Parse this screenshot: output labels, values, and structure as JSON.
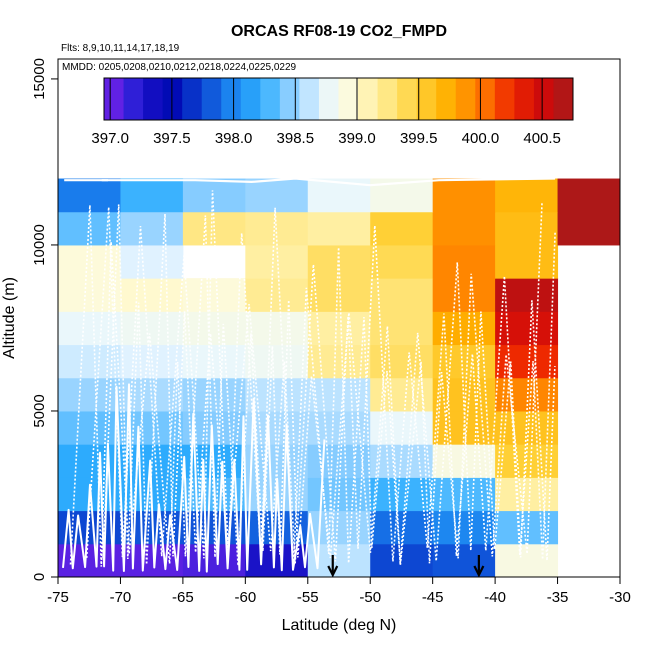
{
  "chart_data": {
    "type": "heatmap",
    "title": "ORCAS RF08-19 CO2_FMPD",
    "flights_note": "Flts: 8,9,10,11,14,17,18,19",
    "dates_note": "MMDD: 0205,0208,0210,0212,0218,0224,0225,0229",
    "xlabel": "Latitude (deg N)",
    "ylabel": "Altitude (m)",
    "xlim": [
      -75,
      -30
    ],
    "ylim": [
      0,
      15000
    ],
    "x_ticks": [
      "-75",
      "-70",
      "-65",
      "-60",
      "-55",
      "-50",
      "-45",
      "-40",
      "-35",
      "-30"
    ],
    "x_tick_values": [
      -75,
      -70,
      -65,
      -60,
      -55,
      -50,
      -45,
      -40,
      -35,
      -30
    ],
    "y_ticks": [
      "0",
      "5000",
      "10000",
      "15000"
    ],
    "y_tick_values": [
      0,
      5000,
      10000,
      15000
    ],
    "colorbar": {
      "min": 396.95,
      "max": 400.75,
      "tick_labels": [
        "397.0",
        "397.5",
        "398.0",
        "398.5",
        "399.0",
        "399.5",
        "400.0",
        "400.5"
      ],
      "tick_values": [
        397.0,
        397.5,
        398.0,
        398.5,
        399.0,
        399.5,
        400.0,
        400.5
      ],
      "colors": [
        "#7a22ea",
        "#2a1fd6",
        "#0000b0",
        "#0a3ccd",
        "#1a80ee",
        "#2eaefe",
        "#8ecfff",
        "#e8f6ff",
        "#fffbd6",
        "#ffe98a",
        "#ffd23a",
        "#ffb000",
        "#ff7e00",
        "#ef2a00",
        "#d00a0a",
        "#a41b1b"
      ]
    },
    "lat_bins": [
      -75,
      -70,
      -65,
      -60,
      -55,
      -50,
      -45,
      -40,
      -35,
      -30
    ],
    "alt_bins": [
      0,
      1000,
      2000,
      3000,
      4000,
      5000,
      6000,
      7000,
      8000,
      9000,
      10000,
      11000,
      12000
    ],
    "values": [
      [
        397.05,
        397.05,
        397.1,
        397.3,
        398.6,
        397.75,
        397.8,
        398.9,
        null
      ],
      [
        397.75,
        397.8,
        397.8,
        397.85,
        398.5,
        397.9,
        398.0,
        398.35,
        null
      ],
      [
        398.2,
        398.2,
        398.3,
        398.5,
        398.4,
        398.25,
        398.3,
        399.15,
        null
      ],
      [
        398.2,
        398.2,
        398.2,
        398.5,
        398.45,
        398.55,
        398.9,
        399.5,
        null
      ],
      [
        398.35,
        398.4,
        398.45,
        398.55,
        398.55,
        398.75,
        399.6,
        399.6,
        null
      ],
      [
        398.5,
        398.55,
        398.5,
        398.6,
        398.6,
        399.2,
        399.6,
        399.95,
        null
      ],
      [
        398.65,
        398.7,
        398.75,
        398.8,
        399.2,
        399.35,
        399.55,
        400.25,
        null
      ],
      [
        398.75,
        398.8,
        398.85,
        398.85,
        399.15,
        399.3,
        399.75,
        400.45,
        null
      ],
      [
        398.95,
        399.0,
        398.95,
        399.2,
        399.35,
        399.3,
        399.95,
        400.6,
        null
      ],
      [
        398.95,
        398.7,
        null,
        399.15,
        399.35,
        399.4,
        399.95,
        399.65,
        null
      ],
      [
        398.35,
        398.5,
        399.25,
        399.2,
        399.15,
        399.5,
        399.9,
        399.65,
        400.7
      ],
      [
        397.95,
        398.25,
        398.45,
        398.5,
        398.75,
        398.85,
        399.9,
        399.7,
        400.7
      ]
    ],
    "arrows_at_latitude": [
      -53,
      -41.3
    ],
    "flight_track_color": "#ffffff"
  }
}
